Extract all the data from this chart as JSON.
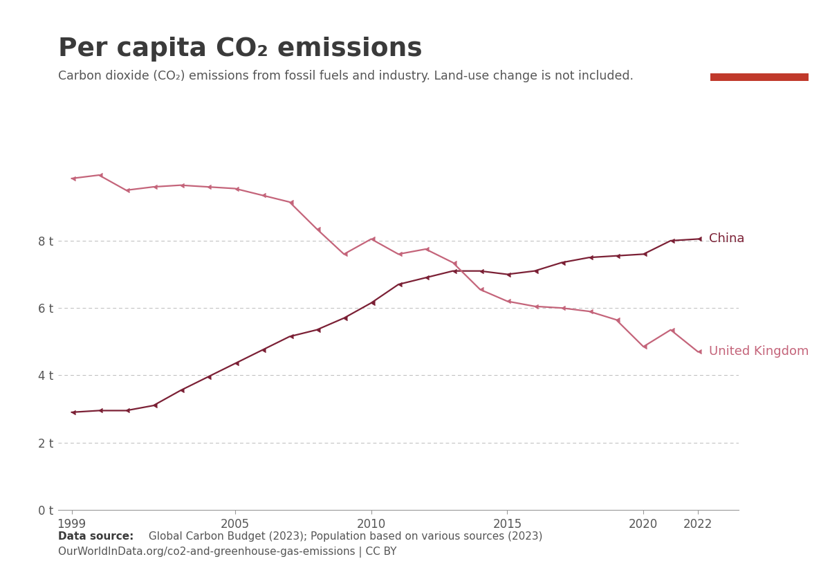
{
  "title_part1": "Per capita CO",
  "title_sub": "2",
  "title_part2": " emissions",
  "subtitle_part1": "Carbon dioxide (CO",
  "subtitle_sub": "2",
  "subtitle_part2": ") emissions from fossil fuels and industry. Land-use change is not included.",
  "datasource_bold": "Data source:",
  "datasource_text": " Global Carbon Budget (2023); Population based on various sources (2023)",
  "datasource_line2": "OurWorldInData.org/co2-and-greenhouse-gas-emissions | CC BY",
  "china_years": [
    1999,
    2000,
    2001,
    2002,
    2003,
    2004,
    2005,
    2006,
    2007,
    2008,
    2009,
    2010,
    2011,
    2012,
    2013,
    2014,
    2015,
    2016,
    2017,
    2018,
    2019,
    2020,
    2021,
    2022
  ],
  "china_values": [
    2.9,
    2.95,
    2.95,
    3.1,
    3.55,
    3.95,
    4.35,
    4.75,
    5.15,
    5.35,
    5.7,
    6.15,
    6.7,
    6.9,
    7.1,
    7.1,
    7.0,
    7.1,
    7.35,
    7.5,
    7.55,
    7.6,
    8.0,
    8.05
  ],
  "uk_years": [
    1999,
    2000,
    2001,
    2002,
    2003,
    2004,
    2005,
    2006,
    2007,
    2008,
    2009,
    2010,
    2011,
    2012,
    2013,
    2014,
    2015,
    2016,
    2017,
    2018,
    2019,
    2020,
    2021,
    2022
  ],
  "uk_values": [
    9.85,
    9.95,
    9.5,
    9.6,
    9.65,
    9.6,
    9.55,
    9.35,
    9.15,
    8.35,
    7.6,
    8.05,
    7.6,
    7.75,
    7.35,
    6.55,
    6.2,
    6.05,
    6.0,
    5.9,
    5.65,
    4.85,
    5.35,
    4.7
  ],
  "china_color": "#7B2035",
  "uk_color": "#C4647A",
  "china_label": "China",
  "uk_label": "United Kingdom",
  "yticks": [
    0,
    2,
    4,
    6,
    8
  ],
  "ytick_labels": [
    "0 t",
    "2 t",
    "4 t",
    "6 t",
    "8 t"
  ],
  "xticks": [
    1999,
    2005,
    2010,
    2015,
    2020,
    2022
  ],
  "xlim": [
    1998.5,
    2023.5
  ],
  "ylim": [
    0,
    10.8
  ],
  "background_color": "#ffffff",
  "owid_box_color": "#1a2e4a",
  "owid_red_color": "#c0392b",
  "grid_color": "#bbbbbb",
  "text_dark": "#3a3a3a",
  "text_mid": "#555555"
}
